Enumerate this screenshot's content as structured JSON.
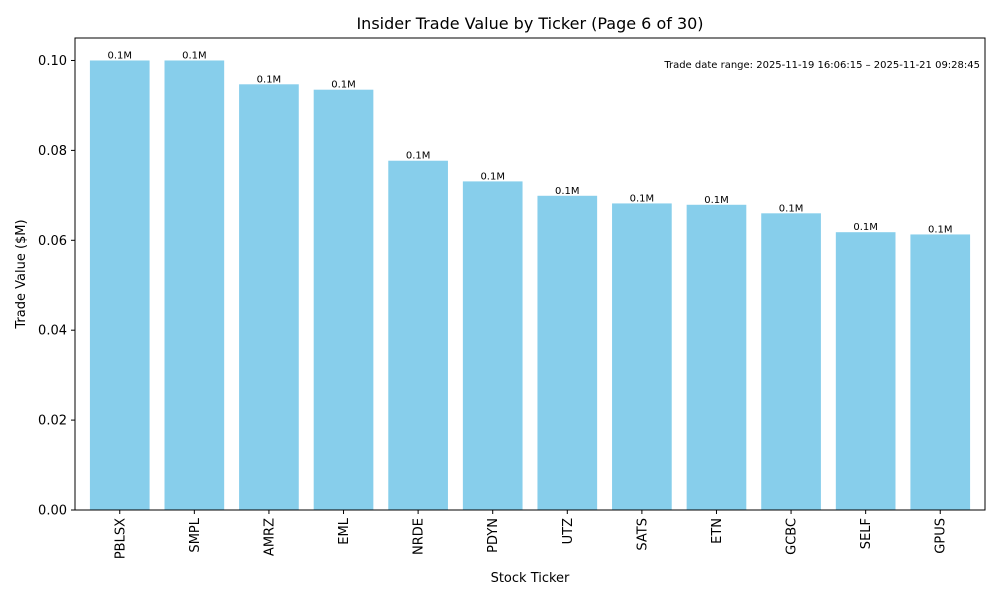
{
  "chart_data": {
    "type": "bar",
    "title": "Insider Trade Value by Ticker (Page 6 of 30)",
    "xlabel": "Stock Ticker",
    "ylabel": "Trade Value ($M)",
    "ylim": [
      0,
      0.105
    ],
    "yticks": [
      "0.00",
      "0.02",
      "0.04",
      "0.06",
      "0.08",
      "0.10"
    ],
    "grid": false,
    "bar_color": "#87ceeb",
    "annotation": "Trade date range: 2025-11-19 16:06:15 – 2025-11-21 09:28:45",
    "categories": [
      "PBLSX",
      "SMPL",
      "AMRZ",
      "EML",
      "NRDE",
      "PDYN",
      "UTZ",
      "SATS",
      "ETN",
      "GCBC",
      "SELF",
      "GPUS"
    ],
    "values": [
      0.1,
      0.1,
      0.0947,
      0.0935,
      0.0777,
      0.0731,
      0.0699,
      0.0682,
      0.0679,
      0.066,
      0.0618,
      0.0613
    ],
    "data_labels": [
      "0.1M",
      "0.1M",
      "0.1M",
      "0.1M",
      "0.1M",
      "0.1M",
      "0.1M",
      "0.1M",
      "0.1M",
      "0.1M",
      "0.1M",
      "0.1M"
    ]
  }
}
